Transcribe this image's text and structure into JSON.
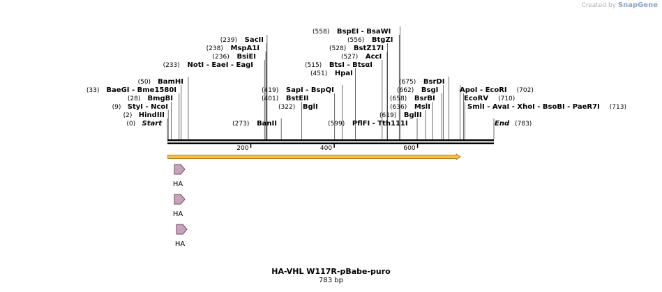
{
  "brand": {
    "created_by": "Created by",
    "logo_text": "SnapGene"
  },
  "map": {
    "name": "HA-VHL W117R-pBabe-puro",
    "length_label": "783 bp",
    "length_bp": 783,
    "ruler_ticks": [
      "200",
      "400",
      "600"
    ],
    "ruler_tick_values": [
      200,
      400,
      600
    ],
    "orf_range": [
      1,
      703
    ],
    "colors": {
      "orf": "#f5c04a",
      "orf_edge": "#b87d1f",
      "feature": "#c8a2b8",
      "feature_edge": "#6e4d66"
    }
  },
  "sites": [
    {
      "pos": 0,
      "pos_label": "(0)",
      "names": [
        "Start"
      ],
      "italic": true
    },
    {
      "pos": 2,
      "pos_label": "(2)",
      "names": [
        "HindIII"
      ]
    },
    {
      "pos": 9,
      "pos_label": "(9)",
      "names": [
        "StyI",
        "NcoI"
      ]
    },
    {
      "pos": 28,
      "pos_label": "(28)",
      "names": [
        "BmgBI"
      ]
    },
    {
      "pos": 33,
      "pos_label": "(33)",
      "names": [
        "BaeGI",
        "Bme1580I"
      ]
    },
    {
      "pos": 50,
      "pos_label": "(50)",
      "names": [
        "BamHI"
      ]
    },
    {
      "pos": 233,
      "pos_label": "(233)",
      "names": [
        "NotI",
        "EaeI",
        "EagI"
      ]
    },
    {
      "pos": 236,
      "pos_label": "(236)",
      "names": [
        "BsiEI"
      ]
    },
    {
      "pos": 238,
      "pos_label": "(238)",
      "names": [
        "MspA1I"
      ]
    },
    {
      "pos": 239,
      "pos_label": "(239)",
      "names": [
        "SacII"
      ]
    },
    {
      "pos": 273,
      "pos_label": "(273)",
      "names": [
        "BanII"
      ]
    },
    {
      "pos": 322,
      "pos_label": "(322)",
      "names": [
        "BglI"
      ]
    },
    {
      "pos": 401,
      "pos_label": "(401)",
      "names": [
        "BstEII"
      ]
    },
    {
      "pos": 419,
      "pos_label": "(419)",
      "names": [
        "SapI",
        "BspQI"
      ]
    },
    {
      "pos": 451,
      "pos_label": "(451)",
      "names": [
        "HpaI"
      ]
    },
    {
      "pos": 515,
      "pos_label": "(515)",
      "names": [
        "BtsI",
        "BtsαI"
      ]
    },
    {
      "pos": 527,
      "pos_label": "(527)",
      "names": [
        "AccI"
      ]
    },
    {
      "pos": 528,
      "pos_label": "(528)",
      "names": [
        "BstZ17I"
      ]
    },
    {
      "pos": 556,
      "pos_label": "(556)",
      "names": [
        "BtgZI"
      ]
    },
    {
      "pos": 558,
      "pos_label": "(558)",
      "names": [
        "BspEI",
        "BsaWI"
      ]
    },
    {
      "pos": 599,
      "pos_label": "(599)",
      "names": [
        "PflFI",
        "Tth111I"
      ]
    },
    {
      "pos": 619,
      "pos_label": "(619)",
      "names": [
        "BglII"
      ]
    },
    {
      "pos": 636,
      "pos_label": "(636)",
      "names": [
        "MslI"
      ]
    },
    {
      "pos": 658,
      "pos_label": "(658)",
      "names": [
        "BsrBI"
      ]
    },
    {
      "pos": 662,
      "pos_label": "(662)",
      "names": [
        "BsgI"
      ]
    },
    {
      "pos": 675,
      "pos_label": "(675)",
      "names": [
        "BsrDI"
      ]
    },
    {
      "pos": 702,
      "pos_label": "(702)",
      "names": [
        "ApoI",
        "EcoRI"
      ]
    },
    {
      "pos": 710,
      "pos_label": "(710)",
      "names": [
        "EcoRV"
      ]
    },
    {
      "pos": 713,
      "pos_label": "(713)",
      "names": [
        "SmlI",
        "AvaI",
        "XhoI",
        "BsoBI",
        "PaeR7I"
      ]
    },
    {
      "pos": 783,
      "pos_label": "(783)",
      "names": [
        "End"
      ],
      "italic": true
    }
  ],
  "features": [
    {
      "label": "HA",
      "start": 24,
      "end": 51
    },
    {
      "label": "HA",
      "start": 24,
      "end": 51
    },
    {
      "label": "HA",
      "start": 29,
      "end": 56
    }
  ]
}
